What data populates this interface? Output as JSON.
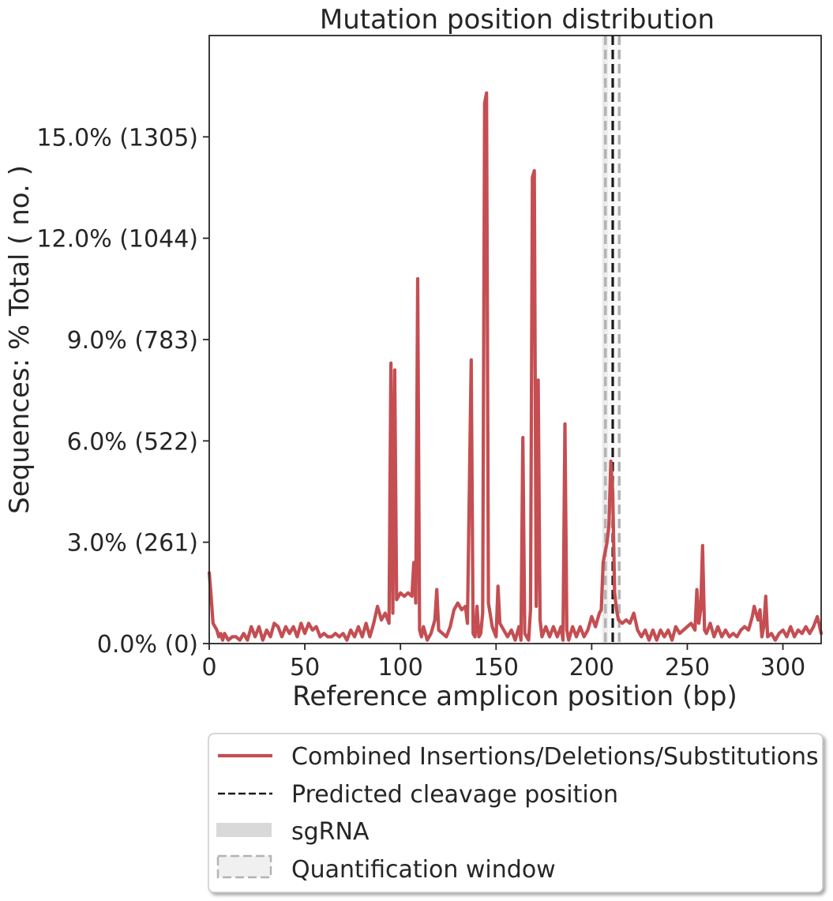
{
  "chart_data": {
    "type": "line",
    "title": "Mutation position distribution",
    "xlabel": "Reference amplicon position (bp)",
    "ylabel": "Sequences: % Total ( no. )",
    "xlim": [
      0,
      320
    ],
    "ylim": [
      0,
      18
    ],
    "x_ticks": [
      0,
      50,
      100,
      150,
      200,
      250,
      300
    ],
    "y_ticks": [
      {
        "value": 0,
        "label": "0.0% (0)"
      },
      {
        "value": 3,
        "label": "3.0% (261)"
      },
      {
        "value": 6,
        "label": "6.0% (522)"
      },
      {
        "value": 9,
        "label": "9.0% (783)"
      },
      {
        "value": 12,
        "label": "12.0% (1044)"
      },
      {
        "value": 15,
        "label": "15.0% (1305)"
      }
    ],
    "grid": false,
    "legend_position": "below",
    "series": [
      {
        "name": "Combined Insertions/Deletions/Substitutions",
        "color": "#c44e52",
        "points": [
          [
            0,
            2.1
          ],
          [
            1,
            1.4
          ],
          [
            2,
            0.6
          ],
          [
            4,
            0.4
          ],
          [
            5,
            0.2
          ],
          [
            6,
            0.3
          ],
          [
            7,
            0.1
          ],
          [
            8,
            0.3
          ],
          [
            10,
            0.1
          ],
          [
            12,
            0.2
          ],
          [
            14,
            0.2
          ],
          [
            16,
            0.1
          ],
          [
            18,
            0.3
          ],
          [
            20,
            0.1
          ],
          [
            22,
            0.5
          ],
          [
            24,
            0.2
          ],
          [
            26,
            0.5
          ],
          [
            28,
            0.1
          ],
          [
            30,
            0.4
          ],
          [
            32,
            0.2
          ],
          [
            34,
            0.6
          ],
          [
            36,
            0.5
          ],
          [
            38,
            0.2
          ],
          [
            40,
            0.5
          ],
          [
            42,
            0.3
          ],
          [
            44,
            0.5
          ],
          [
            46,
            0.2
          ],
          [
            48,
            0.6
          ],
          [
            50,
            0.3
          ],
          [
            52,
            0.6
          ],
          [
            54,
            0.4
          ],
          [
            56,
            0.5
          ],
          [
            58,
            0.2
          ],
          [
            60,
            0.3
          ],
          [
            62,
            0.2
          ],
          [
            64,
            0.2
          ],
          [
            66,
            0.3
          ],
          [
            68,
            0.2
          ],
          [
            70,
            0.3
          ],
          [
            72,
            0.1
          ],
          [
            74,
            0.4
          ],
          [
            76,
            0.2
          ],
          [
            78,
            0.5
          ],
          [
            80,
            0.2
          ],
          [
            82,
            0.6
          ],
          [
            84,
            0.2
          ],
          [
            86,
            0.6
          ],
          [
            88,
            1.1
          ],
          [
            90,
            0.7
          ],
          [
            92,
            0.9
          ],
          [
            94,
            0.6
          ],
          [
            95,
            8.3
          ],
          [
            96,
            0.9
          ],
          [
            97,
            8.1
          ],
          [
            98,
            1.3
          ],
          [
            100,
            1.5
          ],
          [
            102,
            1.4
          ],
          [
            104,
            1.5
          ],
          [
            106,
            1.4
          ],
          [
            107,
            2.4
          ],
          [
            108,
            1.2
          ],
          [
            109,
            10.8
          ],
          [
            110,
            0.4
          ],
          [
            111,
            0.2
          ],
          [
            112,
            0.5
          ],
          [
            114,
            0.1
          ],
          [
            116,
            0.3
          ],
          [
            118,
            0.7
          ],
          [
            119,
            1.6
          ],
          [
            120,
            0.4
          ],
          [
            122,
            0.3
          ],
          [
            124,
            0.2
          ],
          [
            126,
            0.5
          ],
          [
            128,
            1.0
          ],
          [
            130,
            1.2
          ],
          [
            132,
            1.0
          ],
          [
            134,
            1.1
          ],
          [
            135,
            0.6
          ],
          [
            137,
            8.4
          ],
          [
            138,
            0.3
          ],
          [
            139,
            0.2
          ],
          [
            140,
            1.1
          ],
          [
            141,
            0.2
          ],
          [
            142,
            0.3
          ],
          [
            143,
            0.9
          ],
          [
            144,
            16.0
          ],
          [
            145,
            16.3
          ],
          [
            146,
            1.2
          ],
          [
            148,
            0.5
          ],
          [
            150,
            0.2
          ],
          [
            151,
            1.7
          ],
          [
            152,
            0.6
          ],
          [
            154,
            0.4
          ],
          [
            156,
            0.2
          ],
          [
            158,
            0.4
          ],
          [
            160,
            0.1
          ],
          [
            162,
            0.5
          ],
          [
            163,
            0.1
          ],
          [
            164,
            6.1
          ],
          [
            165,
            0.3
          ],
          [
            167,
            0.1
          ],
          [
            168,
            1.0
          ],
          [
            169,
            13.8
          ],
          [
            170,
            14.0
          ],
          [
            171,
            1.1
          ],
          [
            172,
            7.8
          ],
          [
            173,
            0.7
          ],
          [
            174,
            0.2
          ],
          [
            176,
            0.5
          ],
          [
            178,
            0.2
          ],
          [
            180,
            0.5
          ],
          [
            182,
            0.2
          ],
          [
            184,
            0.5
          ],
          [
            185,
            0.1
          ],
          [
            186,
            6.5
          ],
          [
            187,
            0.4
          ],
          [
            188,
            0.1
          ],
          [
            190,
            0.5
          ],
          [
            192,
            0.2
          ],
          [
            194,
            0.5
          ],
          [
            196,
            0.2
          ],
          [
            198,
            0.4
          ],
          [
            200,
            0.8
          ],
          [
            202,
            0.5
          ],
          [
            204,
            0.9
          ],
          [
            205,
            1.0
          ],
          [
            206,
            2.4
          ],
          [
            208,
            3.0
          ],
          [
            209,
            3.5
          ],
          [
            210,
            5.4
          ],
          [
            211,
            4.5
          ],
          [
            212,
            1.5
          ],
          [
            213,
            1.0
          ],
          [
            214,
            0.7
          ],
          [
            216,
            0.6
          ],
          [
            218,
            0.7
          ],
          [
            220,
            0.6
          ],
          [
            222,
            0.9
          ],
          [
            224,
            0.4
          ],
          [
            226,
            0.2
          ],
          [
            228,
            0.4
          ],
          [
            230,
            0.1
          ],
          [
            232,
            0.4
          ],
          [
            234,
            0.1
          ],
          [
            236,
            0.4
          ],
          [
            238,
            0.2
          ],
          [
            240,
            0.4
          ],
          [
            242,
            0.1
          ],
          [
            244,
            0.5
          ],
          [
            246,
            0.3
          ],
          [
            248,
            0.4
          ],
          [
            250,
            0.5
          ],
          [
            252,
            0.6
          ],
          [
            254,
            0.4
          ],
          [
            255,
            1.6
          ],
          [
            256,
            0.6
          ],
          [
            257,
            1.0
          ],
          [
            258,
            2.9
          ],
          [
            259,
            0.4
          ],
          [
            260,
            0.3
          ],
          [
            262,
            0.6
          ],
          [
            264,
            0.2
          ],
          [
            266,
            0.5
          ],
          [
            268,
            0.2
          ],
          [
            270,
            0.4
          ],
          [
            272,
            0.2
          ],
          [
            274,
            0.3
          ],
          [
            276,
            0.2
          ],
          [
            278,
            0.4
          ],
          [
            280,
            0.5
          ],
          [
            282,
            0.4
          ],
          [
            284,
            0.8
          ],
          [
            285,
            1.1
          ],
          [
            287,
            0.7
          ],
          [
            288,
            1.0
          ],
          [
            289,
            0.2
          ],
          [
            290,
            0.5
          ],
          [
            291,
            1.4
          ],
          [
            292,
            0.2
          ],
          [
            294,
            0.3
          ],
          [
            296,
            0.1
          ],
          [
            298,
            0.3
          ],
          [
            300,
            0.4
          ],
          [
            302,
            0.2
          ],
          [
            304,
            0.5
          ],
          [
            306,
            0.2
          ],
          [
            308,
            0.4
          ],
          [
            310,
            0.3
          ],
          [
            312,
            0.5
          ],
          [
            314,
            0.3
          ],
          [
            316,
            0.5
          ],
          [
            318,
            0.8
          ],
          [
            320,
            0.3
          ]
        ]
      }
    ],
    "cleavage_position": 211,
    "sgrna_range": [
      205.5,
      208.5
    ],
    "quantification_window": [
      208,
      214
    ],
    "legend": [
      {
        "label": "Combined Insertions/Deletions/Substitutions",
        "kind": "line",
        "color": "#c44e52"
      },
      {
        "label": "Predicted cleavage position",
        "kind": "dashed",
        "color": "#1a1a1a"
      },
      {
        "label": "sgRNA",
        "kind": "band",
        "color": "#d9d9d9"
      },
      {
        "label": "Quantification window",
        "kind": "dashed-box",
        "color": "#b3b3b3"
      }
    ]
  }
}
